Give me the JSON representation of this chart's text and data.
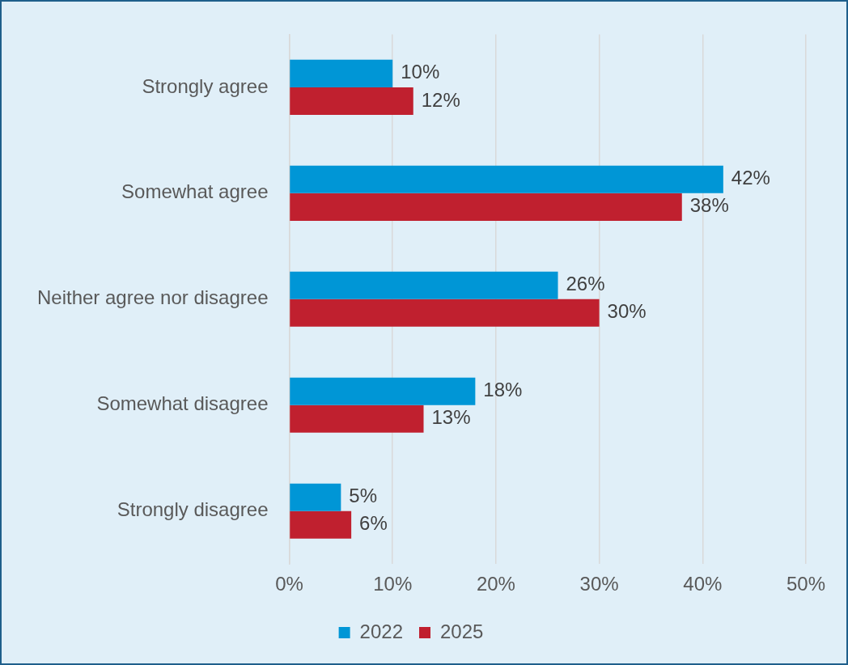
{
  "chart_data": {
    "type": "bar",
    "orientation": "horizontal",
    "categories": [
      "Strongly agree",
      "Somewhat agree",
      "Neither agree nor disagree",
      "Somewhat disagree",
      "Strongly disagree"
    ],
    "series": [
      {
        "name": "2022",
        "color": "#0096d6",
        "values": [
          10,
          42,
          26,
          18,
          5
        ],
        "value_labels": [
          "10%",
          "42%",
          "26%",
          "18%",
          "5%"
        ]
      },
      {
        "name": "2025",
        "color": "#c0202f",
        "values": [
          12,
          38,
          30,
          13,
          6
        ],
        "value_labels": [
          "12%",
          "38%",
          "30%",
          "13%",
          "6%"
        ]
      }
    ],
    "xlim": [
      0,
      50
    ],
    "xticks": [
      {
        "value": 0,
        "label": "0%"
      },
      {
        "value": 10,
        "label": "10%"
      },
      {
        "value": 20,
        "label": "20%"
      },
      {
        "value": 30,
        "label": "30%"
      },
      {
        "value": 40,
        "label": "40%"
      },
      {
        "value": 50,
        "label": "50%"
      }
    ],
    "grid": "x",
    "legend": "bottom"
  }
}
